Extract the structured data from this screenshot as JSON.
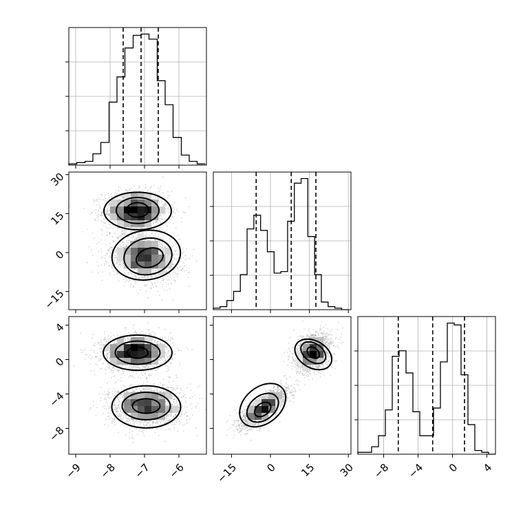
{
  "chart_data": {
    "type": "corner",
    "parameters": [
      {
        "range": [
          -9.2,
          -5.2
        ],
        "ticks": [
          -9,
          -8,
          -7,
          -6
        ],
        "tick_labels": [
          "−9",
          "−8",
          "−7",
          "−6"
        ],
        "quantiles": [
          -7.62,
          -7.1,
          -6.6
        ]
      },
      {
        "range": [
          -22,
          31
        ],
        "ticks": [
          -15,
          0,
          15,
          30
        ],
        "tick_labels": [
          "−15",
          "0",
          "15",
          "30"
        ],
        "quantiles": [
          -5.5,
          8.0,
          17.5
        ]
      },
      {
        "range": [
          -11,
          5
        ],
        "ticks": [
          -8,
          -4,
          0,
          4
        ],
        "tick_labels": [
          "−8",
          "−4",
          "0",
          "4"
        ],
        "quantiles": [
          -6.3,
          -2.3,
          1.4
        ]
      }
    ],
    "histograms": [
      {
        "param": 0,
        "bin_edges": [
          -9.2,
          -8.97,
          -8.73,
          -8.5,
          -8.27,
          -8.03,
          -7.8,
          -7.57,
          -7.33,
          -7.1,
          -6.87,
          -6.63,
          -6.4,
          -6.17,
          -5.93,
          -5.7,
          -5.47,
          -5.23
        ],
        "counts": [
          1,
          2,
          3,
          9,
          18,
          50,
          70,
          93,
          103,
          104,
          100,
          67,
          48,
          22,
          8,
          3,
          1
        ]
      },
      {
        "param": 1,
        "bin_edges": [
          -22,
          -19.4,
          -16.8,
          -14.2,
          -11.6,
          -9,
          -6.4,
          -3.8,
          -1.2,
          1.4,
          4,
          6.6,
          9.2,
          11.8,
          14.4,
          17,
          19.6,
          22.2,
          24.8,
          27.4,
          30
        ],
        "counts": [
          1,
          2,
          6,
          12,
          23,
          53,
          62,
          52,
          38,
          24,
          25,
          58,
          83,
          86,
          48,
          23,
          5,
          2,
          1,
          0
        ]
      },
      {
        "param": 2,
        "bin_edges": [
          -11,
          -10.2,
          -9.4,
          -8.6,
          -7.8,
          -7,
          -6.2,
          -5.4,
          -4.6,
          -3.8,
          -3,
          -2.2,
          -1.4,
          -0.6,
          0.2,
          1,
          1.8,
          2.6,
          3.4,
          4.2,
          5
        ],
        "counts": [
          1,
          1,
          4,
          10,
          24,
          53,
          56,
          44,
          23,
          10,
          10,
          25,
          50,
          71,
          70,
          43,
          16,
          2,
          1,
          0
        ]
      }
    ],
    "scatter_panels": [
      {
        "x_param": 0,
        "y_param": 1,
        "clusters": [
          {
            "center": [
              -7.25,
              16
            ],
            "sd": [
              0.48,
              3.8
            ],
            "corr": 0
          },
          {
            "center": [
              -7.0,
              -2
            ],
            "sd": [
              0.5,
              4.5
            ],
            "corr": -0.15
          }
        ],
        "contours": [
          {
            "center": [
              -7.2,
              16.4
            ],
            "rx": 0.32,
            "ry": 2.8,
            "rot": 0
          },
          {
            "center": [
              -7.2,
              16.2
            ],
            "rx": 0.62,
            "ry": 5.0,
            "rot": 0
          },
          {
            "center": [
              -7.2,
              16.0
            ],
            "rx": 0.98,
            "ry": 7.2,
            "rot": 0
          },
          {
            "center": [
              -6.85,
              -2.0
            ],
            "rx": 0.4,
            "ry": 3.6,
            "rot": -18
          },
          {
            "center": [
              -6.9,
              -1.5
            ],
            "rx": 0.7,
            "ry": 7.0,
            "rot": -10
          },
          {
            "center": [
              -6.95,
              -1.0
            ],
            "rx": 1.0,
            "ry": 9.5,
            "rot": -8
          }
        ]
      },
      {
        "x_param": 0,
        "y_param": 2,
        "clusters": [
          {
            "center": [
              -7.25,
              0.8
            ],
            "sd": [
              0.5,
              1.05
            ],
            "corr": 0
          },
          {
            "center": [
              -6.95,
              -5.4
            ],
            "sd": [
              0.55,
              1.2
            ],
            "corr": 0
          }
        ],
        "contours": [
          {
            "center": [
              -7.2,
              0.8
            ],
            "rx": 0.3,
            "ry": 0.65,
            "rot": 0
          },
          {
            "center": [
              -7.2,
              0.8
            ],
            "rx": 0.65,
            "ry": 1.35,
            "rot": 0
          },
          {
            "center": [
              -7.2,
              0.8
            ],
            "rx": 1.0,
            "ry": 2.05,
            "rot": 0
          },
          {
            "center": [
              -6.95,
              -5.4
            ],
            "rx": 0.4,
            "ry": 0.85,
            "rot": 0
          },
          {
            "center": [
              -6.95,
              -5.4
            ],
            "rx": 0.7,
            "ry": 1.6,
            "rot": 0
          },
          {
            "center": [
              -6.95,
              -5.5
            ],
            "rx": 1.0,
            "ry": 2.45,
            "rot": 0
          }
        ]
      },
      {
        "x_param": 1,
        "y_param": 2,
        "clusters": [
          {
            "center": [
              16.5,
              0.8
            ],
            "sd": [
              3.5,
              1.1
            ],
            "corr": 0.3
          },
          {
            "center": [
              -2.5,
              -5.6
            ],
            "sd": [
              4.6,
              1.15
            ],
            "corr": 0.75
          }
        ],
        "contours": [
          {
            "center": [
              16.5,
              0.8
            ],
            "rx": 1.8,
            "ry": 0.8,
            "rot": -50
          },
          {
            "center": [
              16.5,
              0.8
            ],
            "rx": 3.5,
            "ry": 1.6,
            "rot": -55
          },
          {
            "center": [
              16.5,
              0.6
            ],
            "rx": 5.2,
            "ry": 2.3,
            "rot": -60
          },
          {
            "center": [
              -3.0,
              -5.8
            ],
            "rx": 3.5,
            "ry": 0.7,
            "rot": -36
          },
          {
            "center": [
              -3.0,
              -5.6
            ],
            "rx": 6.8,
            "ry": 1.4,
            "rot": -38
          },
          {
            "center": [
              -3.0,
              -5.3
            ],
            "rx": 10.0,
            "ry": 2.1,
            "rot": -40
          }
        ]
      }
    ]
  }
}
